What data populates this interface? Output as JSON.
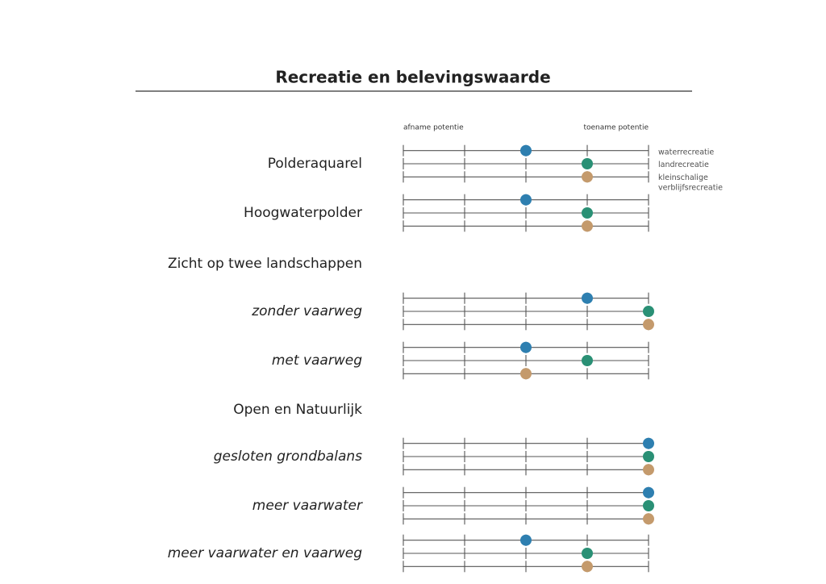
{
  "chart_data": {
    "type": "dot",
    "title": "Recreatie en belevingswaarde",
    "x_start_label": "afname potentie",
    "x_end_label": "toename potentie",
    "categories": [
      "Polderaquarel",
      "Hoogwaterpolder",
      "Zicht op twee landschappen",
      "zonder vaarweg",
      "met vaarweg",
      "Open en Natuurlijk",
      "gesloten grondbalans",
      "meer vaarwater",
      "meer vaarwater en vaarweg"
    ],
    "italic": [
      false,
      false,
      false,
      true,
      true,
      false,
      true,
      true,
      true
    ],
    "xlim": [
      0,
      4
    ],
    "xticks": [
      0,
      1,
      2,
      3,
      4
    ],
    "series": [
      {
        "name": "waterrecreatie",
        "color": "#2e7fb0",
        "values": [
          2,
          2,
          null,
          3,
          2,
          null,
          4,
          4,
          2
        ]
      },
      {
        "name": "landrecreatie",
        "color": "#2a9075",
        "values": [
          3,
          3,
          null,
          4,
          3,
          null,
          4,
          4,
          3
        ]
      },
      {
        "name": "kleinschalige verblijfsrecreatie",
        "color": "#c49a6c",
        "values": [
          3,
          3,
          null,
          4,
          2,
          null,
          4,
          4,
          3
        ]
      }
    ]
  }
}
